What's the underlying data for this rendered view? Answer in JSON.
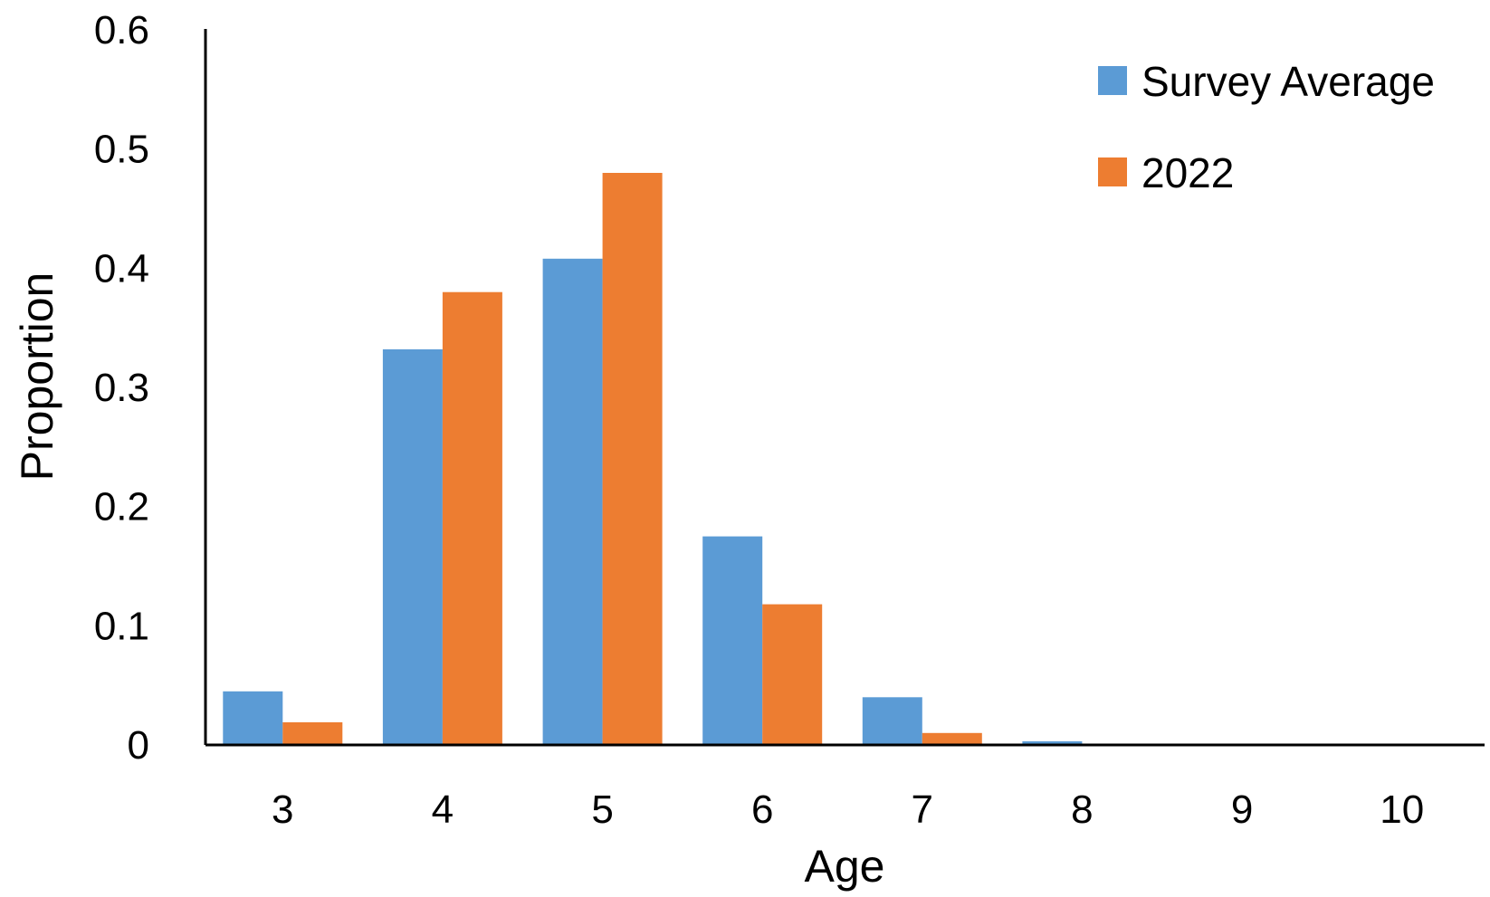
{
  "chart_data": {
    "type": "bar",
    "title": "",
    "xlabel": "Age",
    "ylabel": "Proportion",
    "categories": [
      "3",
      "4",
      "5",
      "6",
      "7",
      "8",
      "9",
      "10"
    ],
    "series": [
      {
        "name": "Survey Average",
        "color": "#5B9BD5",
        "values": [
          0.045,
          0.332,
          0.408,
          0.175,
          0.04,
          0.003,
          0.0,
          0.0
        ]
      },
      {
        "name": "2022",
        "color": "#ED7D31",
        "values": [
          0.019,
          0.38,
          0.48,
          0.118,
          0.01,
          0.0,
          0.0,
          0.0
        ]
      }
    ],
    "ylim": [
      0,
      0.6
    ],
    "yticks": [
      "0",
      "0.1",
      "0.2",
      "0.3",
      "0.4",
      "0.5",
      "0.6"
    ],
    "grid": false,
    "legend_position": "top-right"
  }
}
